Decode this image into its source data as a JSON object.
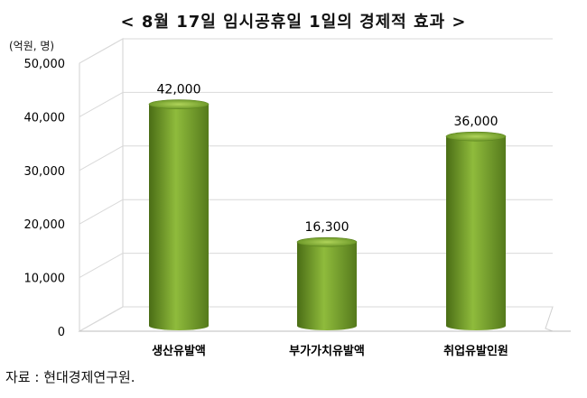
{
  "chart_data": {
    "type": "bar",
    "title": "< 8월 17일 임시공휴일 1일의 경제적 효과 >",
    "unit_label": "(억원, 명)",
    "categories": [
      "생산유발액",
      "부가가치유발액",
      "취업유발인원"
    ],
    "values": [
      42000,
      16300,
      36000
    ],
    "value_labels": [
      "42,000",
      "16,300",
      "36,000"
    ],
    "yticks": [
      0,
      10000,
      20000,
      30000,
      40000,
      50000
    ],
    "ytick_labels": [
      "0",
      "10,000",
      "20,000",
      "30,000",
      "40,000",
      "50,000"
    ],
    "ylim": [
      0,
      50000
    ],
    "grid": true,
    "bar_color": "#6f9a2a"
  },
  "source": "자료 : 현대경제연구원."
}
